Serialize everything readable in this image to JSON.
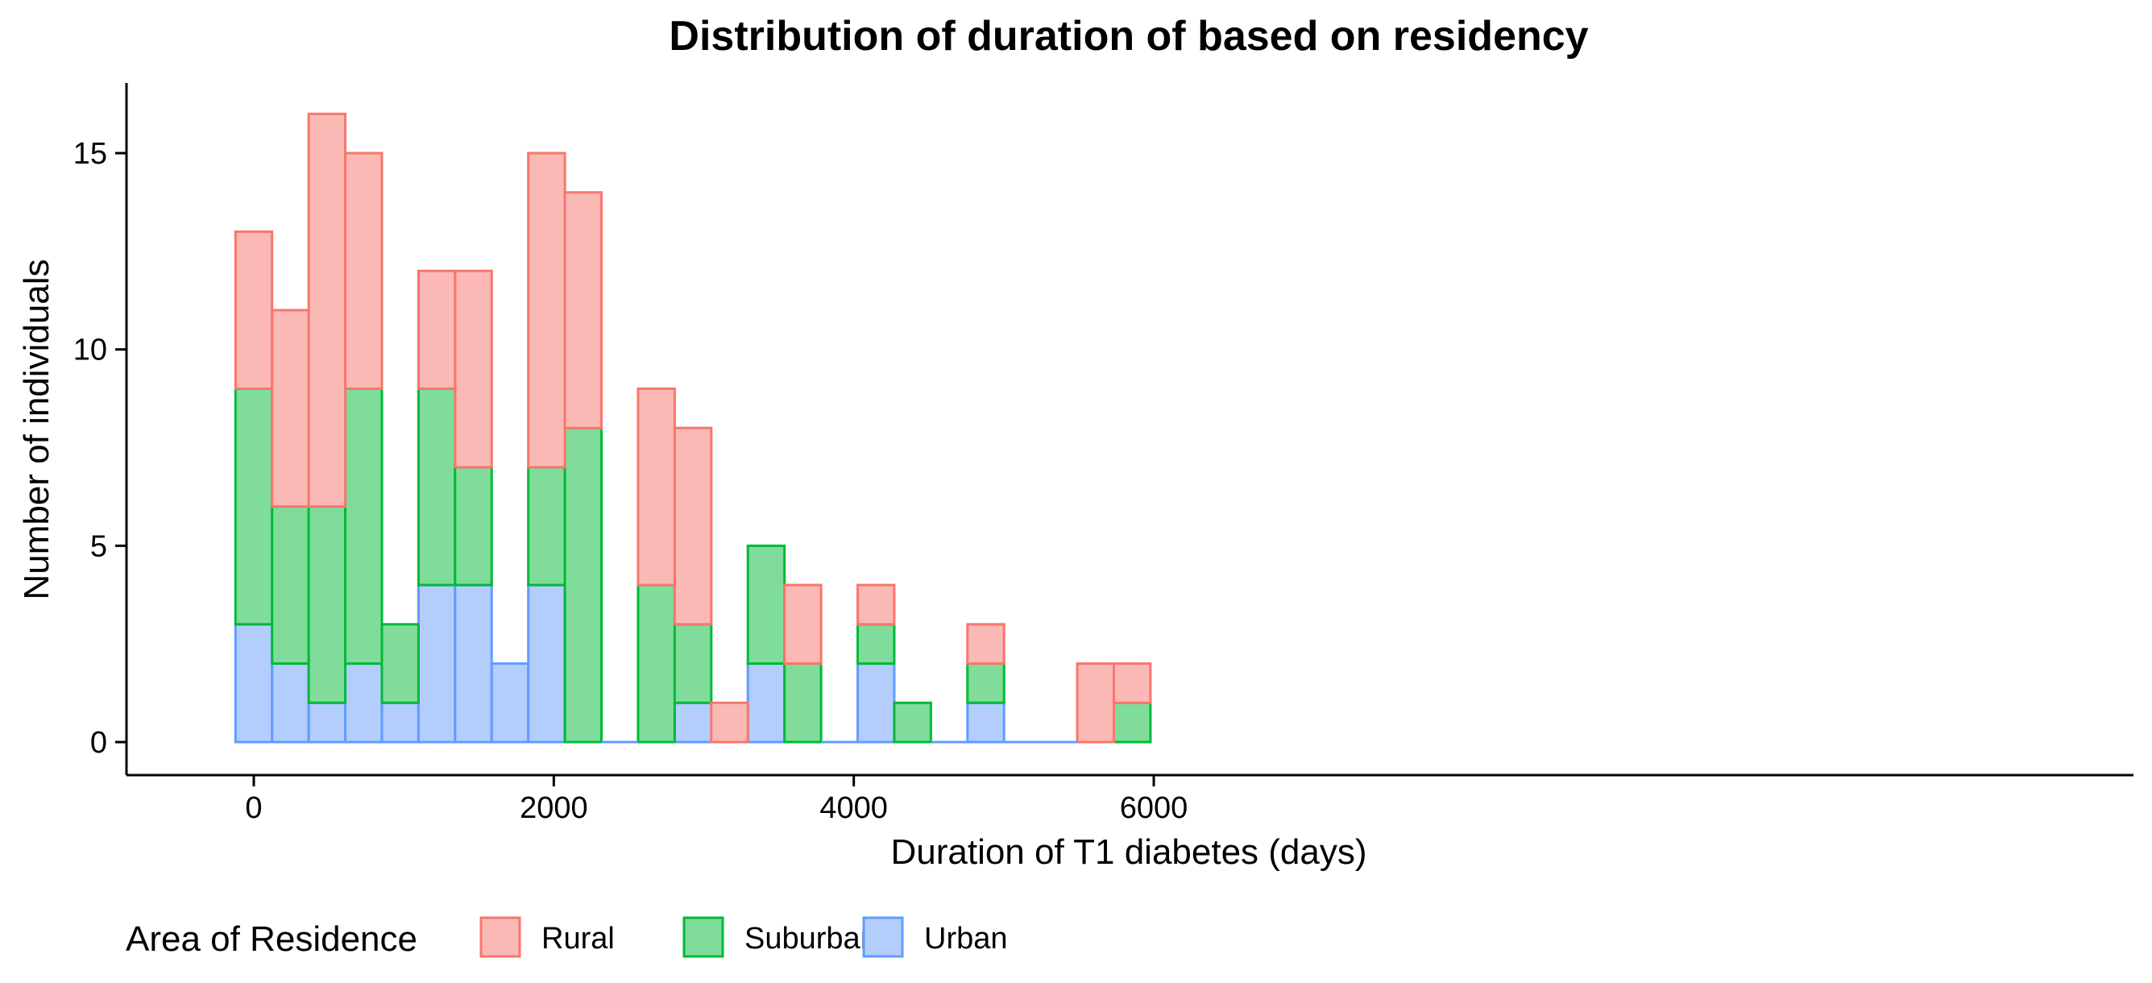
{
  "chart_data": {
    "type": "bar",
    "stacked": true,
    "title": "Distribution of duration of based on residency",
    "xlabel": "Duration of T1 diabetes (days)",
    "ylabel": "Number of individuals",
    "xlim": [
      -400,
      6000
    ],
    "ylim": [
      0,
      16
    ],
    "x_ticks": [
      0,
      2000,
      4000,
      6000
    ],
    "y_ticks": [
      0,
      5,
      10,
      15
    ],
    "grid": false,
    "legend": {
      "title": "Area of Residence",
      "position": "bottom"
    },
    "bin_width": 244,
    "bin_left_edges": [
      -122,
      122,
      366,
      610,
      854,
      1098,
      1342,
      1586,
      1830,
      2074,
      2318,
      2562,
      2806,
      3050,
      3294,
      3538,
      3782,
      4026,
      4270,
      4514,
      4758,
      5002,
      5246,
      5490,
      5734
    ],
    "series": [
      {
        "name": "Urban",
        "fill": "#b3cdfd",
        "stroke": "#619cff",
        "values": [
          3,
          2,
          1,
          2,
          1,
          4,
          4,
          2,
          4,
          0,
          0,
          0,
          1,
          0,
          2,
          0,
          0,
          2,
          0,
          0,
          1,
          0,
          0,
          0,
          0
        ]
      },
      {
        "name": "Suburban",
        "fill": "#80dc9a",
        "stroke": "#00ba38",
        "values": [
          6,
          4,
          5,
          7,
          2,
          5,
          3,
          0,
          3,
          8,
          0,
          4,
          2,
          0,
          3,
          2,
          0,
          1,
          1,
          0,
          1,
          0,
          0,
          0,
          1
        ]
      },
      {
        "name": "Rural",
        "fill": "#fbb9b6",
        "stroke": "#f8766d",
        "values": [
          4,
          5,
          10,
          6,
          0,
          3,
          5,
          0,
          8,
          6,
          0,
          5,
          5,
          1,
          0,
          2,
          0,
          1,
          0,
          0,
          1,
          0,
          0,
          2,
          1
        ]
      }
    ],
    "legend_order": [
      "Rural",
      "Suburban",
      "Urban"
    ]
  }
}
